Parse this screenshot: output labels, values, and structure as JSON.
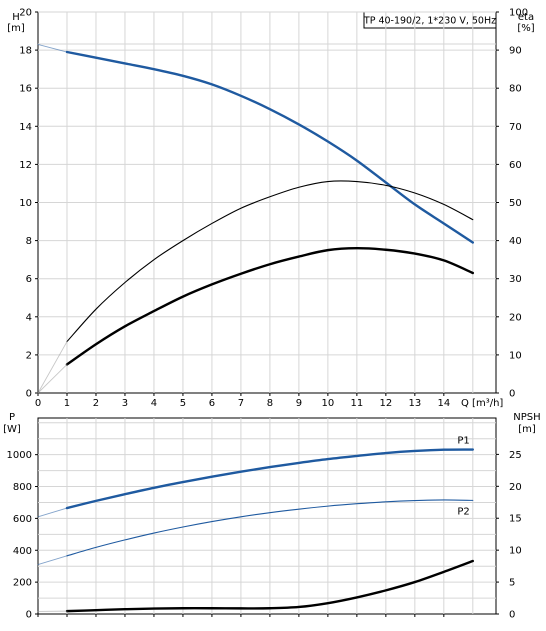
{
  "chart_data": [
    {
      "type": "line",
      "title": "TP 40-190/2, 1*230 V, 50Hz",
      "xlabel": "Q [m³/h]",
      "ylabel_left_name": "H",
      "ylabel_left_unit": "[m]",
      "ylabel_right_name": "eta",
      "ylabel_right_unit": "[%]",
      "xlim": [
        0,
        15.8
      ],
      "ylim_left": [
        0,
        20
      ],
      "ylim_right": [
        0,
        100
      ],
      "x_ticks": [
        0,
        1,
        2,
        3,
        4,
        5,
        6,
        7,
        8,
        9,
        10,
        11,
        12,
        13,
        14
      ],
      "y_left_ticks": [
        0,
        2,
        4,
        6,
        8,
        10,
        12,
        14,
        16,
        18,
        20
      ],
      "y_right_ticks": [
        0,
        10,
        20,
        30,
        40,
        50,
        60,
        70,
        80,
        90,
        100
      ],
      "grid": true,
      "series": [
        {
          "axis": "left",
          "color": "#1f5aa0",
          "style": "thick",
          "x": [
            1,
            2,
            3,
            4,
            5,
            6,
            7,
            8,
            9,
            10,
            11,
            12,
            13,
            14,
            15
          ],
          "values": [
            17.9,
            17.6,
            17.3,
            17.0,
            16.65,
            16.2,
            15.6,
            14.9,
            14.1,
            13.2,
            12.2,
            11.05,
            9.9,
            8.9,
            7.9
          ]
        },
        {
          "axis": "left",
          "color": "#1f5aa0",
          "style": "thin-faint",
          "x": [
            0,
            1
          ],
          "values": [
            18.3,
            17.9
          ]
        },
        {
          "axis": "right",
          "color": "#000000",
          "style": "thin",
          "x": [
            1,
            2,
            3,
            4,
            5,
            6,
            7,
            8,
            9,
            10,
            11,
            12,
            13,
            14,
            15
          ],
          "values": [
            13.5,
            22,
            29,
            35,
            40,
            44.5,
            48.5,
            51.5,
            54,
            55.5,
            55.5,
            54.5,
            52.5,
            49.5,
            45.5
          ]
        },
        {
          "axis": "right",
          "color": "#000000",
          "style": "thick",
          "x": [
            1,
            2,
            3,
            4,
            5,
            6,
            7,
            8,
            9,
            10,
            11,
            12,
            13,
            14,
            15
          ],
          "values": [
            7.5,
            12.8,
            17.5,
            21.5,
            25.3,
            28.5,
            31.3,
            33.8,
            35.8,
            37.5,
            38,
            37.6,
            36.6,
            34.8,
            31.5
          ]
        },
        {
          "axis": "right",
          "color": "#999999",
          "style": "thin-faint",
          "x": [
            0,
            1
          ],
          "values": [
            0,
            13.5
          ]
        },
        {
          "axis": "right",
          "color": "#999999",
          "style": "thin-faint",
          "x": [
            0,
            1
          ],
          "values": [
            0,
            7.5
          ]
        }
      ]
    },
    {
      "type": "line",
      "xlim": [
        0,
        15.8
      ],
      "ylabel_left_name": "P",
      "ylabel_left_unit": "[W]",
      "ylabel_right_name": "NPSH",
      "ylabel_right_unit": "[m]",
      "ylim_left": [
        0,
        1230
      ],
      "ylim_right": [
        0,
        30.7
      ],
      "y_left_ticks": [
        0,
        200,
        400,
        600,
        800,
        1000
      ],
      "y_right_ticks": [
        0,
        5,
        10,
        15,
        20,
        25
      ],
      "grid": true,
      "series": [
        {
          "name": "P1",
          "axis": "left",
          "color": "#1f5aa0",
          "style": "thick",
          "x": [
            1,
            2,
            3,
            4,
            5,
            6,
            7,
            8,
            9,
            10,
            11,
            12,
            13,
            14,
            15
          ],
          "values": [
            665,
            710,
            752,
            792,
            828,
            862,
            893,
            922,
            948,
            972,
            992,
            1010,
            1023,
            1031,
            1032
          ]
        },
        {
          "name": "P2",
          "axis": "left",
          "color": "#1f5aa0",
          "style": "thin",
          "x": [
            1,
            2,
            3,
            4,
            5,
            6,
            7,
            8,
            9,
            10,
            11,
            12,
            13,
            14,
            15
          ],
          "values": [
            365,
            418,
            465,
            508,
            546,
            580,
            610,
            636,
            658,
            677,
            692,
            704,
            712,
            716,
            713
          ]
        },
        {
          "axis": "left",
          "color": "#1f5aa0",
          "style": "thin-faint",
          "x": [
            0,
            1
          ],
          "values": [
            610,
            665
          ]
        },
        {
          "axis": "left",
          "color": "#1f5aa0",
          "style": "thin-faint",
          "x": [
            0,
            1
          ],
          "values": [
            310,
            365
          ]
        },
        {
          "axis": "right",
          "color": "#000000",
          "style": "thick",
          "x": [
            1,
            2,
            3,
            4,
            5,
            6,
            7,
            8,
            9,
            10,
            11,
            12,
            13,
            14,
            15
          ],
          "values": [
            0.45,
            0.6,
            0.75,
            0.85,
            0.9,
            0.9,
            0.88,
            0.9,
            1.1,
            1.7,
            2.6,
            3.7,
            5.0,
            6.6,
            8.3
          ]
        },
        {
          "axis": "right",
          "color": "#999999",
          "style": "thin-faint",
          "x": [
            0,
            1
          ],
          "values": [
            0.4,
            0.45
          ]
        }
      ]
    }
  ]
}
